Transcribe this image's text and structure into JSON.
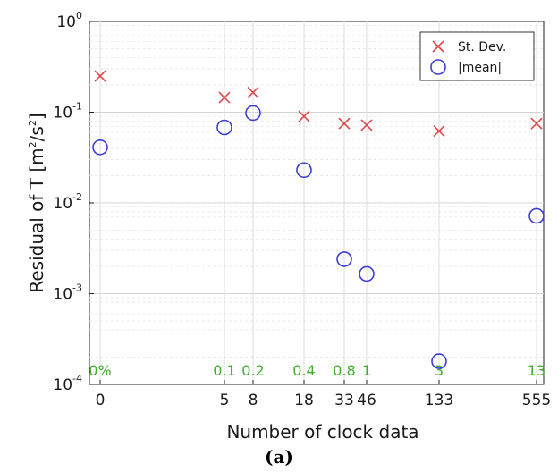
{
  "chart_data": {
    "type": "scatter",
    "title": "",
    "xlabel": "Number of clock data",
    "ylabel": "Residual of T [m²/s²]",
    "ylabel_parts": {
      "pre": "Residual of T [m",
      "sup1": "2",
      "mid": "/s",
      "sup2": "2",
      "post": "]"
    },
    "yscale": "log",
    "ylim": [
      0.0001,
      1
    ],
    "y_ticks": [
      {
        "base": "10",
        "exp": "0",
        "value": 1
      },
      {
        "base": "10",
        "exp": "-1",
        "value": 0.1
      },
      {
        "base": "10",
        "exp": "-2",
        "value": 0.01
      },
      {
        "base": "10",
        "exp": "-3",
        "value": 0.001
      },
      {
        "base": "10",
        "exp": "-4",
        "value": 0.0001
      }
    ],
    "x_tick_labels": [
      "0",
      "5",
      "8",
      "18",
      "33",
      "46",
      "133",
      "555"
    ],
    "categories": [
      "0",
      "5",
      "8",
      "18",
      "33",
      "46",
      "133",
      "555"
    ],
    "percent_labels": [
      "0%",
      "0.1",
      "0.2",
      "0.4",
      "0.8",
      "1",
      "3",
      "13"
    ],
    "series": [
      {
        "name": "St. Dev.",
        "marker": "x",
        "color": "#e0474c",
        "values": [
          0.25,
          0.145,
          0.165,
          0.09,
          0.075,
          0.072,
          0.062,
          0.075
        ]
      },
      {
        "name": "|mean|",
        "marker": "circle",
        "color": "#3d3dd6",
        "values": [
          0.041,
          0.068,
          0.098,
          0.023,
          0.0024,
          0.00165,
          0.00018,
          0.0072
        ]
      }
    ],
    "grid": true,
    "legend_position": "top-right",
    "percent_label_color": "#3fae2a"
  },
  "caption": "(a)"
}
